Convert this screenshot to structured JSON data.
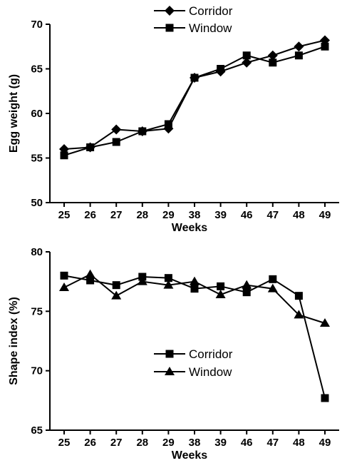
{
  "chart_data": [
    {
      "type": "line",
      "xlabel": "Weeks",
      "ylabel": "Egg weight (g)",
      "ylim": [
        50,
        70
      ],
      "yticks": [
        50,
        55,
        60,
        65,
        70
      ],
      "categories": [
        "25",
        "26",
        "27",
        "28",
        "29",
        "38",
        "39",
        "46",
        "47",
        "48",
        "49"
      ],
      "legend_position": "top-center",
      "grid": false,
      "series": [
        {
          "name": "Corridor",
          "marker": "diamond",
          "values": [
            56.0,
            56.2,
            58.2,
            58.0,
            58.3,
            64.0,
            64.7,
            65.7,
            66.5,
            67.5,
            68.2
          ]
        },
        {
          "name": "Window",
          "marker": "square",
          "values": [
            55.3,
            56.2,
            56.8,
            58.0,
            58.8,
            64.0,
            65.0,
            66.5,
            65.7,
            66.5,
            67.5
          ]
        }
      ]
    },
    {
      "type": "line",
      "xlabel": "Weeks",
      "ylabel": "Shape index (%)",
      "ylim": [
        65,
        80
      ],
      "yticks": [
        65,
        70,
        75,
        80
      ],
      "categories": [
        "25",
        "26",
        "27",
        "28",
        "29",
        "38",
        "39",
        "46",
        "47",
        "48",
        "49"
      ],
      "legend_position": "center",
      "grid": false,
      "series": [
        {
          "name": "Corridor",
          "marker": "square",
          "values": [
            78.0,
            77.6,
            77.2,
            77.9,
            77.8,
            76.9,
            77.1,
            76.6,
            77.7,
            76.3,
            67.7
          ]
        },
        {
          "name": "Window",
          "marker": "triangle",
          "values": [
            77.0,
            78.1,
            76.3,
            77.5,
            77.2,
            77.5,
            76.4,
            77.2,
            76.9,
            74.7,
            74.0
          ]
        }
      ]
    }
  ]
}
